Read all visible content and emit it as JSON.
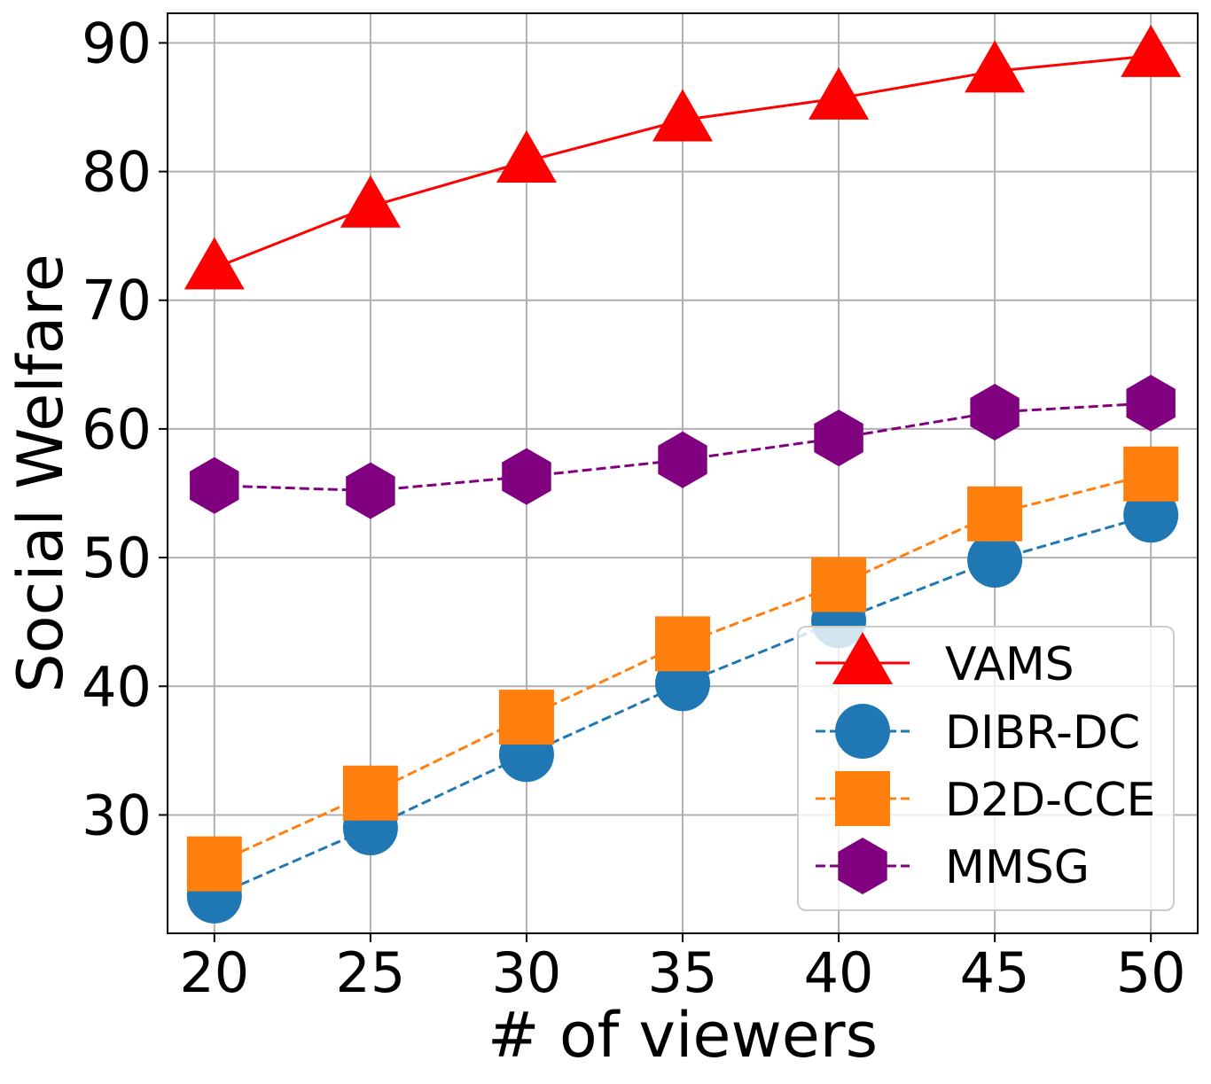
{
  "chart_data": {
    "type": "line",
    "title": "",
    "xlabel": "# of viewers",
    "ylabel": "Social Welfare",
    "x": [
      20,
      25,
      30,
      35,
      40,
      45,
      50
    ],
    "xticks": [
      "20",
      "25",
      "30",
      "35",
      "40",
      "45",
      "50"
    ],
    "yticks": [
      "30",
      "40",
      "50",
      "60",
      "70",
      "80",
      "90"
    ],
    "xlim": [
      18.5,
      51.5
    ],
    "ylim": [
      20.8,
      92.3
    ],
    "grid": true,
    "legend_position": "bottom-right",
    "series": [
      {
        "name": "VAMS",
        "values": [
          72.5,
          77.3,
          80.8,
          84.0,
          85.7,
          87.8,
          89.0
        ],
        "color": "#ff0000",
        "line_style": "solid",
        "marker": "triangle"
      },
      {
        "name": "DIBR-DC",
        "values": [
          23.7,
          29.0,
          34.7,
          40.2,
          45.1,
          49.8,
          53.3
        ],
        "color": "#1f77b4",
        "line_style": "dashed",
        "marker": "circle"
      },
      {
        "name": "D2D-CCE",
        "values": [
          26.2,
          31.7,
          37.6,
          43.3,
          47.9,
          53.4,
          56.5
        ],
        "color": "#ff7f0e",
        "line_style": "dashed",
        "marker": "square"
      },
      {
        "name": "MMSG",
        "values": [
          55.6,
          55.2,
          56.3,
          57.6,
          59.3,
          61.3,
          62.0
        ],
        "color": "#800080",
        "line_style": "dashed",
        "marker": "hexagon"
      }
    ]
  }
}
